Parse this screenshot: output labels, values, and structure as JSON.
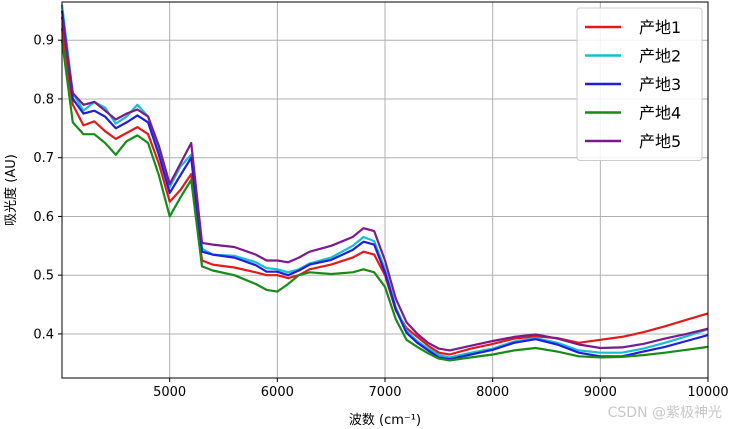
{
  "chart_data": {
    "type": "line",
    "xlabel": "波数 (cm⁻¹)",
    "ylabel": "吸光度 (AU)",
    "xlim": [
      4000,
      10000
    ],
    "ylim": [
      0.325,
      0.965
    ],
    "xticks": [
      5000,
      6000,
      7000,
      8000,
      9000,
      10000
    ],
    "yticks": [
      0.4,
      0.5,
      0.6,
      0.7,
      0.8,
      0.9
    ],
    "grid": true,
    "legend_position": "top-right",
    "x": [
      4000,
      4100,
      4200,
      4300,
      4400,
      4500,
      4600,
      4700,
      4800,
      4900,
      5000,
      5100,
      5200,
      5300,
      5400,
      5600,
      5800,
      5900,
      6000,
      6100,
      6200,
      6300,
      6500,
      6700,
      6800,
      6900,
      7000,
      7100,
      7200,
      7300,
      7400,
      7500,
      7600,
      7800,
      8000,
      8200,
      8400,
      8600,
      8800,
      9000,
      9200,
      9400,
      9600,
      9800,
      10000
    ],
    "series": [
      {
        "name": "产地1",
        "color": "#e31a1c",
        "values": [
          0.92,
          0.79,
          0.755,
          0.762,
          0.745,
          0.732,
          0.742,
          0.752,
          0.74,
          0.69,
          0.625,
          0.645,
          0.672,
          0.525,
          0.518,
          0.513,
          0.505,
          0.5,
          0.5,
          0.495,
          0.5,
          0.51,
          0.518,
          0.53,
          0.54,
          0.535,
          0.5,
          0.44,
          0.41,
          0.395,
          0.38,
          0.368,
          0.365,
          0.375,
          0.383,
          0.392,
          0.396,
          0.393,
          0.385,
          0.39,
          0.395,
          0.403,
          0.413,
          0.424,
          0.435
        ]
      },
      {
        "name": "产地2",
        "color": "#17becf",
        "values": [
          0.96,
          0.81,
          0.78,
          0.795,
          0.785,
          0.758,
          0.77,
          0.79,
          0.77,
          0.715,
          0.65,
          0.685,
          0.705,
          0.545,
          0.535,
          0.533,
          0.522,
          0.512,
          0.51,
          0.505,
          0.51,
          0.52,
          0.53,
          0.55,
          0.565,
          0.558,
          0.51,
          0.445,
          0.405,
          0.388,
          0.375,
          0.364,
          0.36,
          0.368,
          0.375,
          0.387,
          0.393,
          0.385,
          0.372,
          0.368,
          0.368,
          0.375,
          0.385,
          0.396,
          0.408
        ]
      },
      {
        "name": "产地3",
        "color": "#1f1fdb",
        "values": [
          0.95,
          0.8,
          0.775,
          0.78,
          0.77,
          0.75,
          0.76,
          0.772,
          0.76,
          0.705,
          0.64,
          0.67,
          0.7,
          0.54,
          0.535,
          0.53,
          0.517,
          0.506,
          0.506,
          0.5,
          0.508,
          0.518,
          0.526,
          0.543,
          0.557,
          0.552,
          0.505,
          0.442,
          0.402,
          0.385,
          0.372,
          0.36,
          0.357,
          0.365,
          0.373,
          0.385,
          0.391,
          0.382,
          0.368,
          0.362,
          0.362,
          0.37,
          0.378,
          0.388,
          0.398
        ]
      },
      {
        "name": "产地4",
        "color": "#168c16",
        "values": [
          0.9,
          0.76,
          0.74,
          0.74,
          0.725,
          0.705,
          0.728,
          0.738,
          0.725,
          0.67,
          0.6,
          0.632,
          0.662,
          0.515,
          0.508,
          0.5,
          0.485,
          0.475,
          0.472,
          0.485,
          0.5,
          0.505,
          0.502,
          0.505,
          0.51,
          0.505,
          0.48,
          0.425,
          0.39,
          0.378,
          0.367,
          0.358,
          0.355,
          0.36,
          0.365,
          0.372,
          0.376,
          0.37,
          0.362,
          0.36,
          0.361,
          0.364,
          0.368,
          0.373,
          0.378
        ]
      },
      {
        "name": "产地5",
        "color": "#7b1a8c",
        "values": [
          0.94,
          0.81,
          0.79,
          0.795,
          0.78,
          0.765,
          0.775,
          0.782,
          0.77,
          0.72,
          0.655,
          0.69,
          0.725,
          0.555,
          0.552,
          0.548,
          0.535,
          0.525,
          0.525,
          0.522,
          0.53,
          0.54,
          0.55,
          0.565,
          0.58,
          0.575,
          0.525,
          0.46,
          0.42,
          0.4,
          0.385,
          0.375,
          0.372,
          0.38,
          0.388,
          0.395,
          0.399,
          0.392,
          0.382,
          0.376,
          0.377,
          0.383,
          0.392,
          0.4,
          0.409
        ]
      }
    ]
  },
  "watermark": "CSDN @紫极神光"
}
